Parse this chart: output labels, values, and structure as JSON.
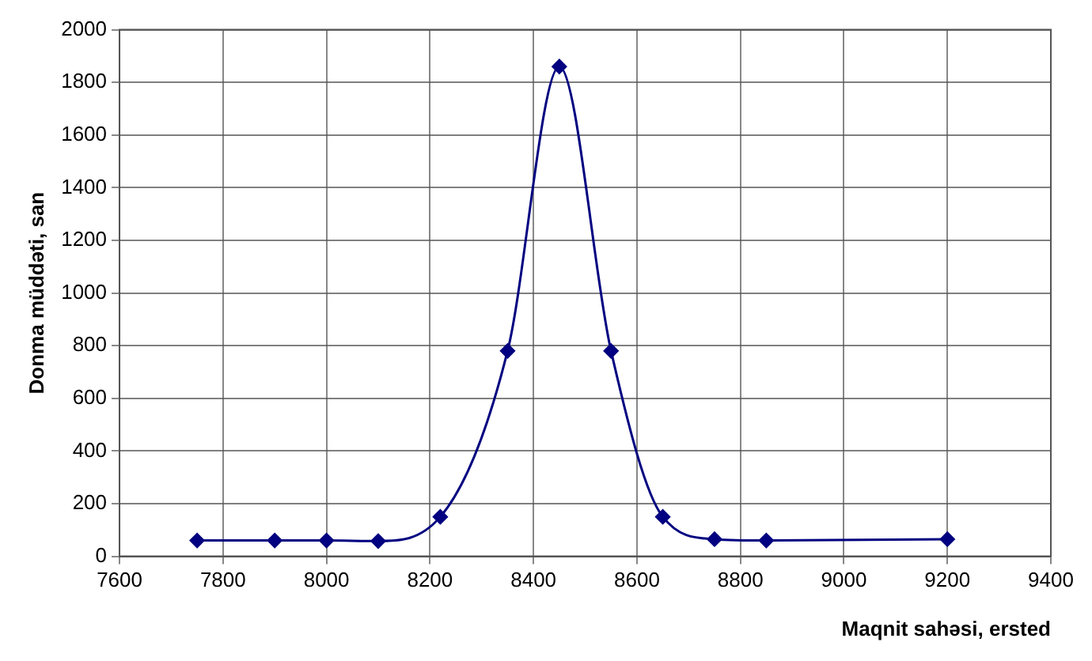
{
  "chart_data": {
    "type": "line",
    "xlabel": "Maqnit sahəsi, ersted",
    "ylabel": "Donma müddəti, san",
    "x": [
      7750,
      7900,
      8000,
      8100,
      8220,
      8350,
      8450,
      8550,
      8650,
      8750,
      8850,
      9200
    ],
    "series": [
      {
        "color": "#000080",
        "values": [
          60,
          60,
          60,
          58,
          150,
          780,
          1860,
          780,
          150,
          65,
          60,
          65
        ]
      }
    ],
    "xlim": [
      7600,
      9400
    ],
    "xticks": [
      7600,
      7800,
      8000,
      8200,
      8400,
      8600,
      8800,
      9000,
      9200,
      9400
    ],
    "ylim": [
      0,
      2000
    ],
    "yticks": [
      0,
      200,
      400,
      600,
      800,
      1000,
      1200,
      1400,
      1600,
      1800,
      2000
    ],
    "grid": true,
    "marker": "diamond",
    "line_style": "solid"
  }
}
